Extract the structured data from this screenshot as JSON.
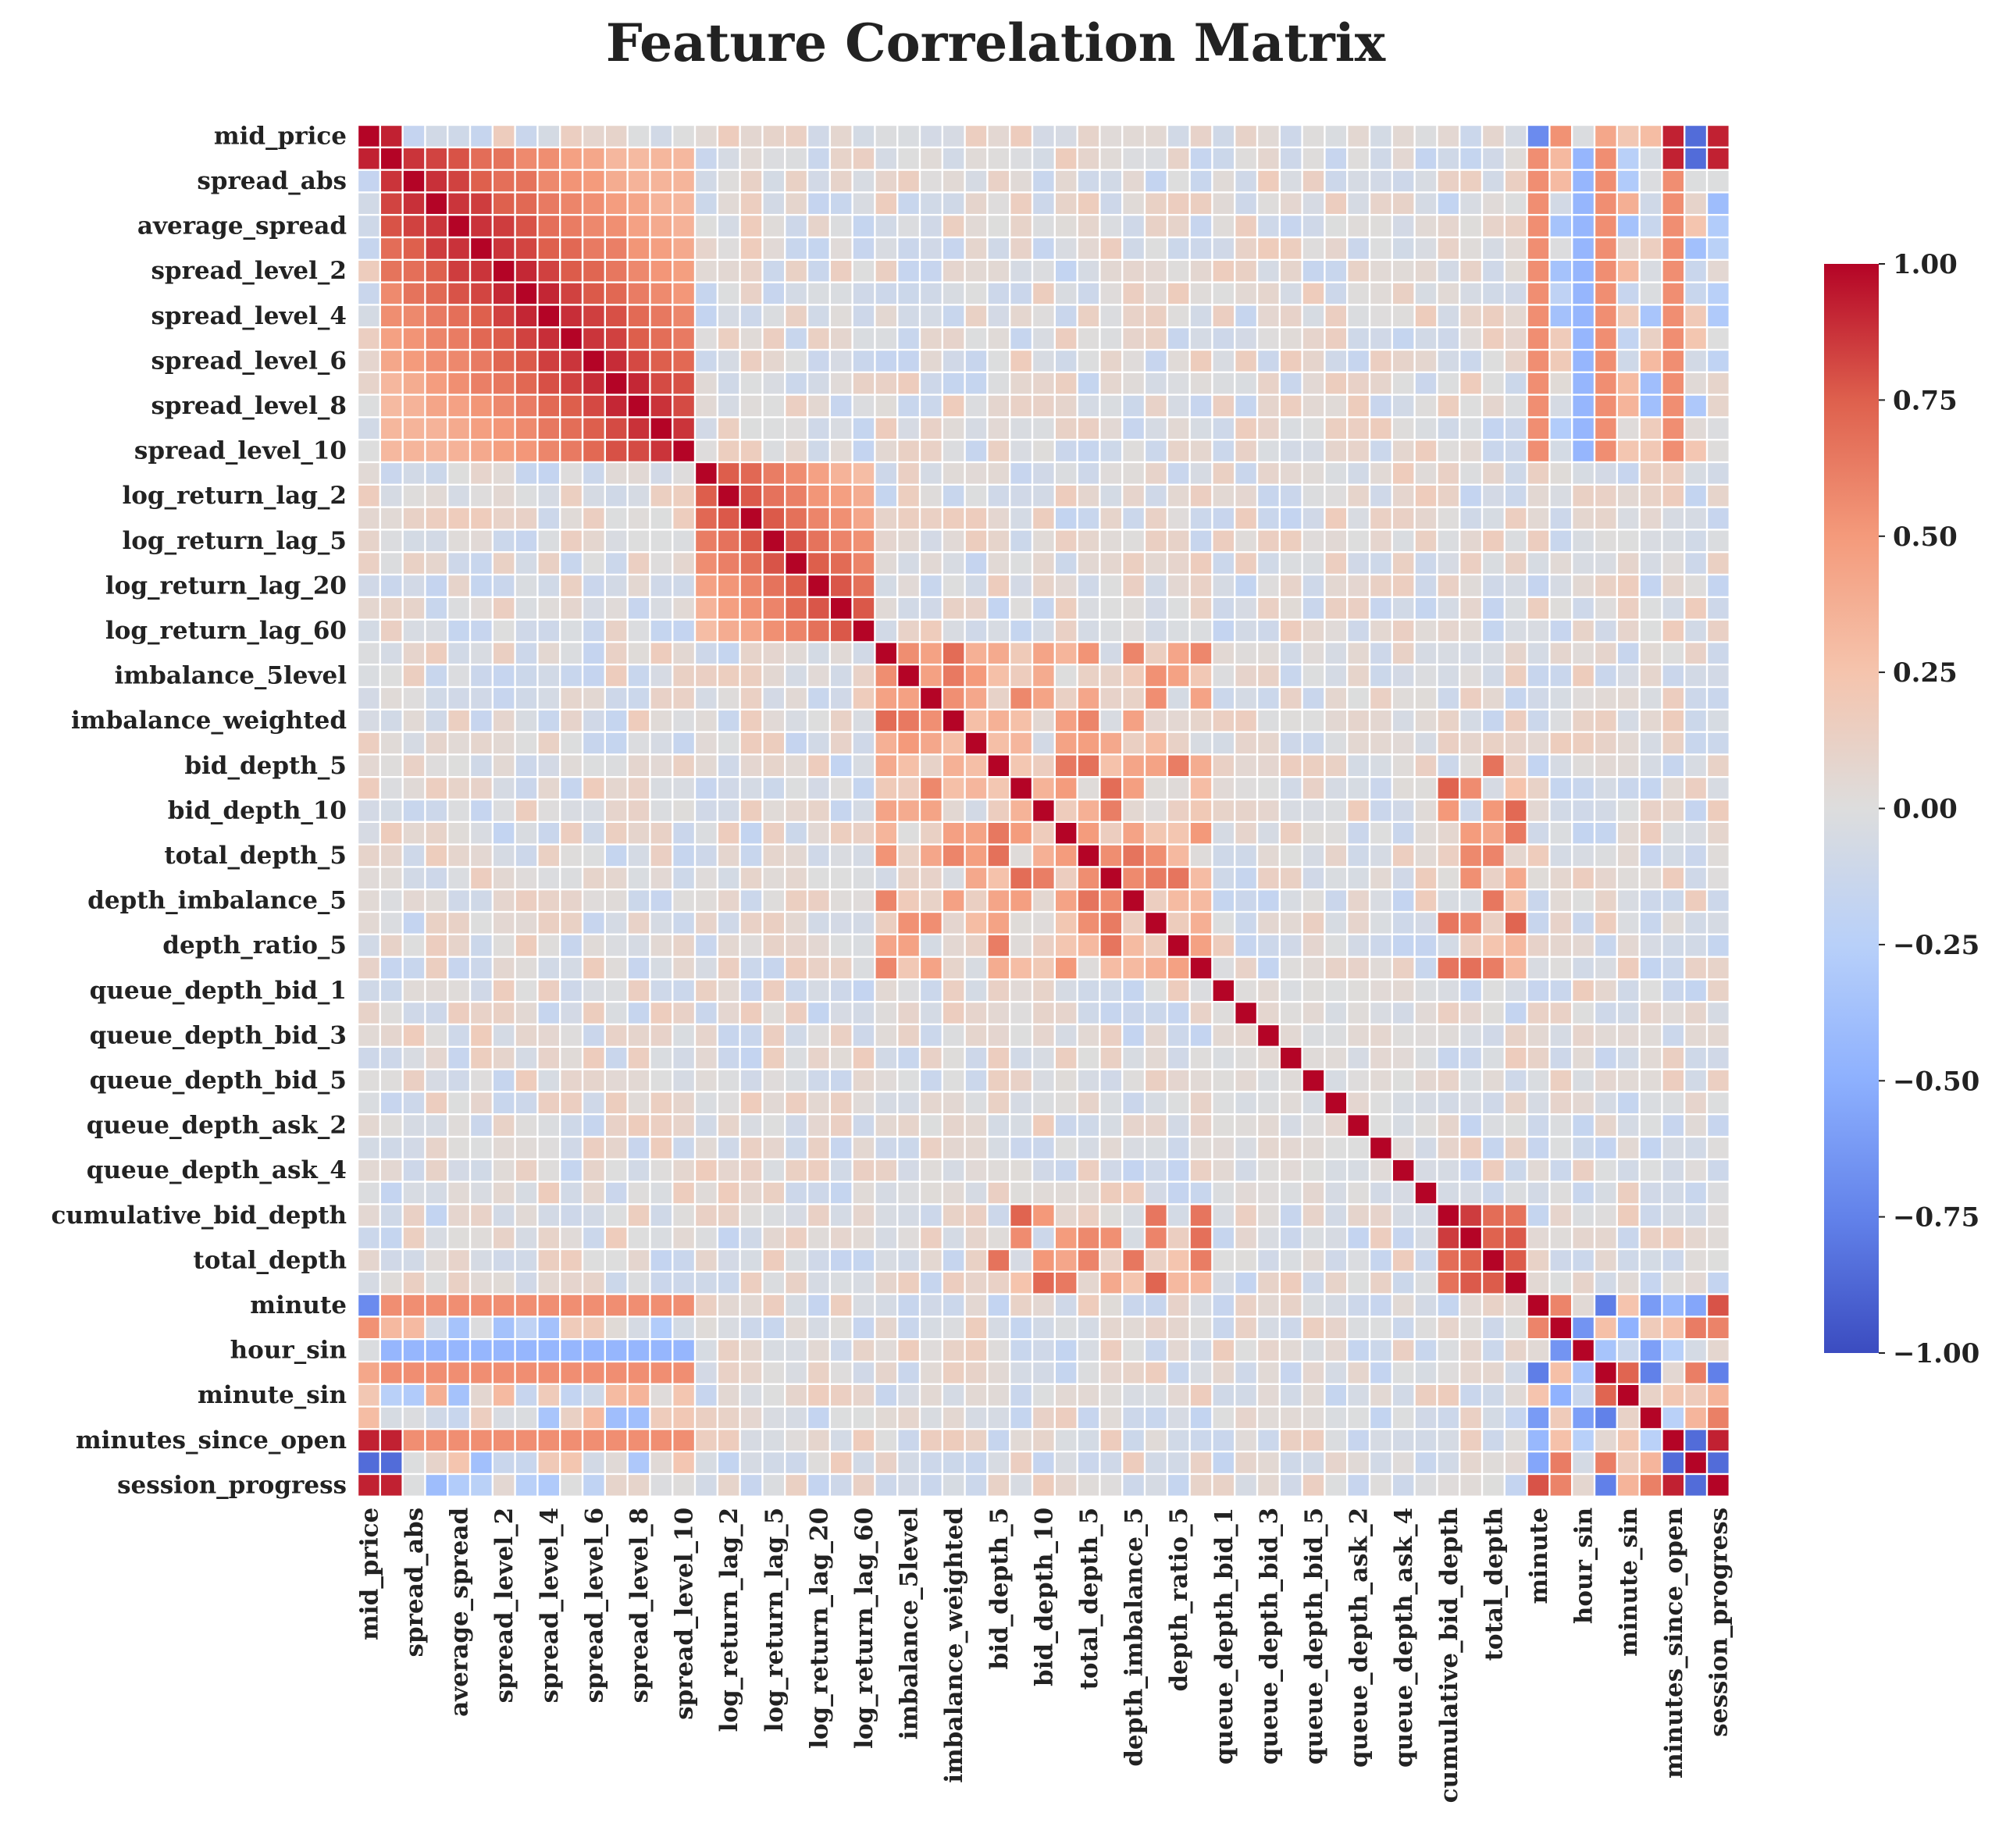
{
  "chart_data": {
    "type": "heatmap",
    "title": "Feature Correlation Matrix",
    "colormap": "coolwarm",
    "vmin": -1.0,
    "vmax": 1.0,
    "grid": "white cell borders",
    "legend": "colorbar right",
    "colorbar_ticks": [
      "1.00",
      "0.75",
      "0.50",
      "0.25",
      "0.00",
      "−0.25",
      "−0.50",
      "−0.75",
      "−1.00"
    ],
    "colorbar_values": [
      1.0,
      0.75,
      0.5,
      0.25,
      0.0,
      -0.25,
      -0.5,
      -0.75,
      -1.0
    ],
    "n": 61,
    "labeled_rows": [
      {
        "index": 0,
        "label": "mid_price"
      },
      {
        "index": 2,
        "label": "spread_abs"
      },
      {
        "index": 4,
        "label": "average_spread"
      },
      {
        "index": 6,
        "label": "spread_level_2"
      },
      {
        "index": 8,
        "label": "spread_level_4"
      },
      {
        "index": 10,
        "label": "spread_level_6"
      },
      {
        "index": 12,
        "label": "spread_level_8"
      },
      {
        "index": 14,
        "label": "spread_level_10"
      },
      {
        "index": 16,
        "label": "log_return_lag_2"
      },
      {
        "index": 18,
        "label": "log_return_lag_5"
      },
      {
        "index": 20,
        "label": "log_return_lag_20"
      },
      {
        "index": 22,
        "label": "log_return_lag_60"
      },
      {
        "index": 24,
        "label": "imbalance_5level"
      },
      {
        "index": 26,
        "label": "imbalance_weighted"
      },
      {
        "index": 28,
        "label": "bid_depth_5"
      },
      {
        "index": 30,
        "label": "bid_depth_10"
      },
      {
        "index": 32,
        "label": "total_depth_5"
      },
      {
        "index": 34,
        "label": "depth_imbalance_5"
      },
      {
        "index": 36,
        "label": "depth_ratio_5"
      },
      {
        "index": 38,
        "label": "queue_depth_bid_1"
      },
      {
        "index": 40,
        "label": "queue_depth_bid_3"
      },
      {
        "index": 42,
        "label": "queue_depth_bid_5"
      },
      {
        "index": 44,
        "label": "queue_depth_ask_2"
      },
      {
        "index": 46,
        "label": "queue_depth_ask_4"
      },
      {
        "index": 48,
        "label": "cumulative_bid_depth"
      },
      {
        "index": 50,
        "label": "total_depth"
      },
      {
        "index": 52,
        "label": "minute"
      },
      {
        "index": 54,
        "label": "hour_sin"
      },
      {
        "index": 56,
        "label": "minute_sin"
      },
      {
        "index": 58,
        "label": "minutes_since_open"
      },
      {
        "index": 60,
        "label": "session_progress"
      }
    ],
    "groups": {
      "spread": {
        "start": 1,
        "end": 14
      },
      "returns": {
        "start": 15,
        "end": 22
      },
      "imbalance": {
        "start": 23,
        "end": 27
      },
      "depth": {
        "start": 28,
        "end": 37
      },
      "queue": {
        "start": 38,
        "end": 47
      },
      "cumulative": {
        "start": 48,
        "end": 51
      },
      "time": {
        "start": 52,
        "end": 60
      }
    },
    "description_values": {
      "diagonal": 1.0,
      "within_spread_strong": 0.9,
      "within_spread_decay": 0.35,
      "returns_near_diag": 0.8,
      "returns_block": 0.35,
      "mid_price_vs_session_progress": 0.95,
      "mid_price_vs_minutes_since_open": 0.9,
      "mid_price_vs_row59": -0.85,
      "hour_sin_vs_minute": -0.85,
      "spread_vs_time_cos": 0.55,
      "spread_vs_hour_sin": -0.45
    }
  }
}
